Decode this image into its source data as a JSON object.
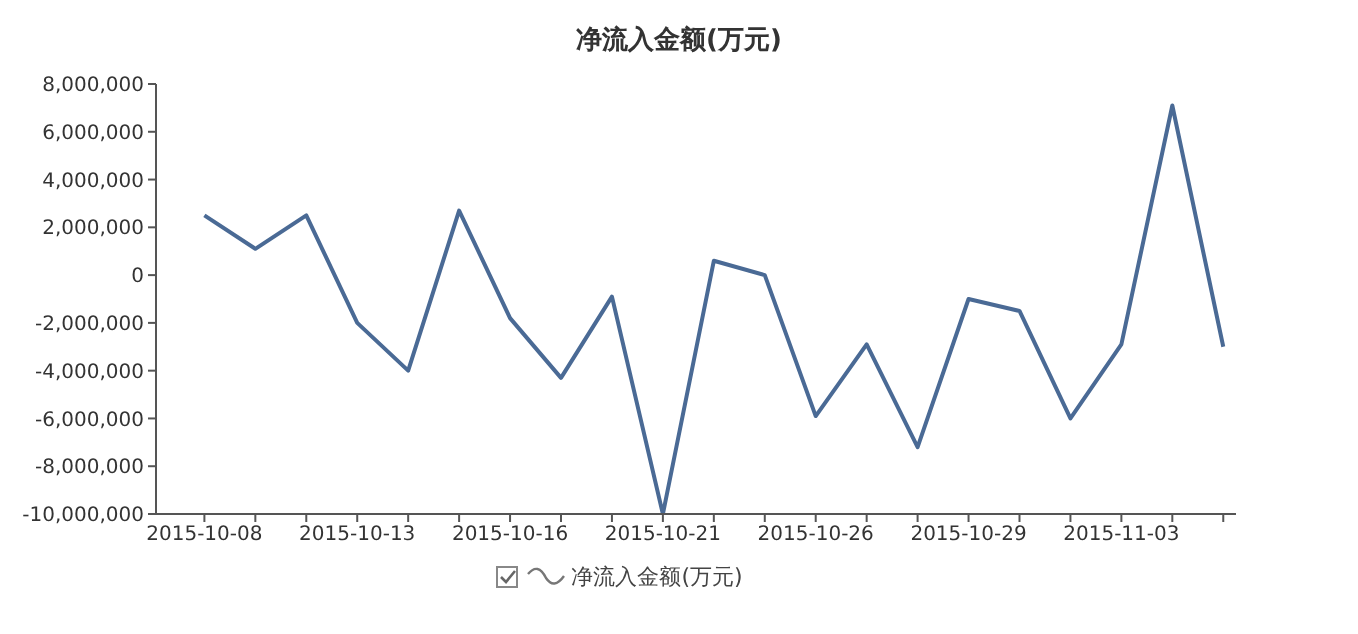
{
  "chart_data": {
    "type": "line",
    "title": "净流入金额(万元)",
    "categories": [
      "2015-10-08",
      null,
      null,
      "2015-10-13",
      null,
      null,
      "2015-10-16",
      null,
      null,
      "2015-10-21",
      null,
      null,
      "2015-10-26",
      null,
      null,
      "2015-10-29",
      null,
      null,
      "2015-11-03",
      null,
      null
    ],
    "series": [
      {
        "name": "净流入金额(万元)",
        "color": "#4a6a95",
        "values": [
          2500000,
          1100000,
          2500000,
          -2000000,
          -4000000,
          2700000,
          -1800000,
          -4300000,
          -900000,
          -10000000,
          600000,
          0,
          -5900000,
          -2900000,
          -7200000,
          -1000000,
          -1500000,
          -6000000,
          -2900000,
          7100000,
          -3000000
        ]
      }
    ],
    "ylim": [
      -10000000,
      8000000
    ],
    "yticks": [
      {
        "value": -10000000,
        "label": "-10,000,000"
      },
      {
        "value": -8000000,
        "label": "-8,000,000"
      },
      {
        "value": -6000000,
        "label": "-6,000,000"
      },
      {
        "value": -4000000,
        "label": "-4,000,000"
      },
      {
        "value": -2000000,
        "label": "-2,000,000"
      },
      0,
      {
        "value": 2000000,
        "label": "2,000,000"
      },
      {
        "value": 4000000,
        "label": "4,000,000"
      },
      {
        "value": 6000000,
        "label": "6,000,000"
      },
      {
        "value": 8000000,
        "label": "8,000,000"
      }
    ],
    "grid": false,
    "legend": "bottom",
    "marker": "none",
    "line_style": "solid"
  }
}
